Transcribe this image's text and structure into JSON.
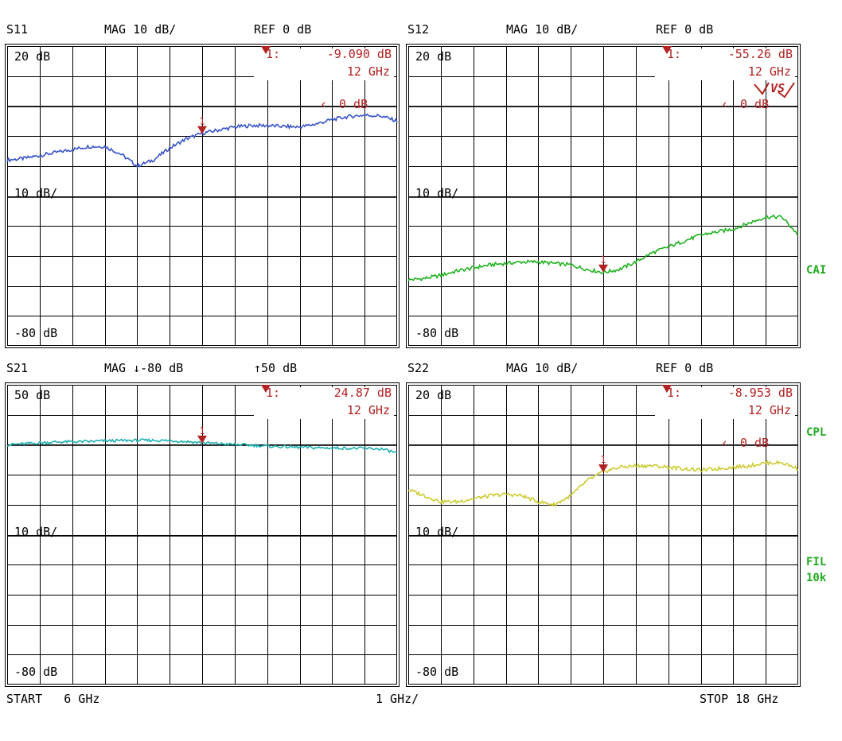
{
  "colors": {
    "grid": "#000000",
    "background": "#ffffff",
    "marker": "#b22222",
    "side_label": "#22aa22"
  },
  "footer": {
    "start": "START   6 GHz",
    "div": "1 GHz/",
    "stop": "STOP 18 GHz"
  },
  "side_labels": {
    "cal": "CAI",
    "cpl": "CPL",
    "fil": "FIL",
    "fil_bw": "10k"
  },
  "chart_data": [
    {
      "type": "line",
      "title": "S11",
      "format": "MAG 10 dB/",
      "ref_text": "REF 0 dB",
      "top_label": "20 dB",
      "mid_label": "10 dB/",
      "bottom_label": "-80 dB",
      "ref_marker": "0 dB",
      "marker_value": "-9.090 dB",
      "marker_freq": "12 GHz",
      "marker_prefix": "1:",
      "marker_number": "1",
      "xlim": [
        6,
        18
      ],
      "ylim": [
        -80,
        20
      ],
      "xlabel": "",
      "ylabel": "",
      "color": "#3a55c8",
      "series": [
        {
          "x": [
            6,
            6.5,
            7,
            7.5,
            8,
            8.5,
            9,
            9.5,
            10,
            10.5,
            11,
            11.5,
            12,
            12.5,
            13,
            13.5,
            14,
            14.5,
            15,
            15.5,
            16,
            16.5,
            17,
            17.5,
            18
          ],
          "values": [
            -18,
            -17.5,
            -16.5,
            -15.5,
            -14.5,
            -13.5,
            -13.5,
            -16,
            -20,
            -18,
            -14,
            -11,
            -9.1,
            -8,
            -7,
            -6.5,
            -6.5,
            -6.8,
            -7,
            -6,
            -4.5,
            -3.5,
            -3,
            -3.3,
            -5
          ]
        }
      ],
      "marker": {
        "x": 12,
        "y": -9.09
      }
    },
    {
      "type": "line",
      "title": "S12",
      "format": "MAG 10 dB/",
      "ref_text": "REF 0 dB",
      "top_label": "20 dB",
      "mid_label": "10 dB/",
      "bottom_label": "-80 dB",
      "ref_marker": "0 dB",
      "marker_value": "-55.26 dB",
      "marker_freq": "12 GHz",
      "marker_prefix": "1:",
      "marker_number": "1",
      "badge": "VS",
      "xlim": [
        6,
        18
      ],
      "ylim": [
        -80,
        20
      ],
      "xlabel": "",
      "ylabel": "",
      "color": "#22b222",
      "series": [
        {
          "x": [
            6,
            6.5,
            7,
            7.5,
            8,
            8.5,
            9,
            9.5,
            10,
            10.5,
            11,
            11.5,
            12,
            12.5,
            13,
            13.5,
            14,
            14.5,
            15,
            15.5,
            16,
            16.5,
            17,
            17.5,
            18
          ],
          "values": [
            -58,
            -57.5,
            -56.5,
            -55,
            -54,
            -53,
            -52.5,
            -52,
            -52,
            -52.5,
            -53,
            -54.5,
            -55.5,
            -54.5,
            -52,
            -49,
            -47,
            -45,
            -43,
            -42,
            -41,
            -39,
            -37,
            -37,
            -43
          ]
        }
      ],
      "marker": {
        "x": 12,
        "y": -55.26
      }
    },
    {
      "type": "line",
      "title": "S21",
      "format": "MAG ↓-80 dB",
      "ref_text": "↑50 dB",
      "top_label": "50 dB",
      "mid_label": "10 dB/",
      "bottom_label": "-80 dB",
      "marker_value": "24.87 dB",
      "marker_freq": "12 GHz",
      "marker_prefix": "1:",
      "marker_number": "1",
      "xlim": [
        6,
        18
      ],
      "ylim": [
        -80,
        50
      ],
      "xlabel": "",
      "ylabel": "",
      "color": "#1fb0b0",
      "series": [
        {
          "x": [
            6,
            6.5,
            7,
            7.5,
            8,
            8.5,
            9,
            9.5,
            10,
            10.5,
            11,
            11.5,
            12,
            12.5,
            13,
            13.5,
            14,
            14.5,
            15,
            15.5,
            16,
            16.5,
            17,
            17.5,
            18
          ],
          "values": [
            24,
            24.4,
            24.8,
            25.2,
            25.3,
            25.4,
            25.7,
            25.8,
            25.9,
            25.9,
            25.8,
            25.4,
            24.9,
            24.5,
            24.1,
            23.8,
            23.4,
            23.1,
            22.9,
            22.7,
            22.6,
            22.5,
            22.4,
            22.2,
            20.5
          ]
        }
      ],
      "marker": {
        "x": 12,
        "y": 24.87
      }
    },
    {
      "type": "line",
      "title": "S22",
      "format": "MAG 10 dB/",
      "ref_text": "REF 0 dB",
      "top_label": "20 dB",
      "mid_label": "10 dB/",
      "bottom_label": "-80 dB",
      "ref_marker": "0 dB",
      "marker_value": "-8.953 dB",
      "marker_freq": "12 GHz",
      "marker_prefix": "1:",
      "marker_number": "1",
      "xlim": [
        6,
        18
      ],
      "ylim": [
        -80,
        20
      ],
      "xlabel": "",
      "ylabel": "",
      "color": "#cccc33",
      "series": [
        {
          "x": [
            6,
            6.5,
            7,
            7.5,
            8,
            8.5,
            9,
            9.5,
            10,
            10.5,
            11,
            11.5,
            12,
            12.5,
            13,
            13.5,
            14,
            14.5,
            15,
            15.5,
            16,
            16.5,
            17,
            17.5,
            18
          ],
          "values": [
            -15,
            -17,
            -19,
            -19,
            -18,
            -17,
            -16.5,
            -17,
            -19,
            -20,
            -17,
            -12,
            -9,
            -7.5,
            -7,
            -7,
            -7.5,
            -8,
            -8.5,
            -8,
            -7.5,
            -7,
            -6,
            -6,
            -8
          ]
        }
      ],
      "marker": {
        "x": 12,
        "y": -8.953
      }
    }
  ]
}
